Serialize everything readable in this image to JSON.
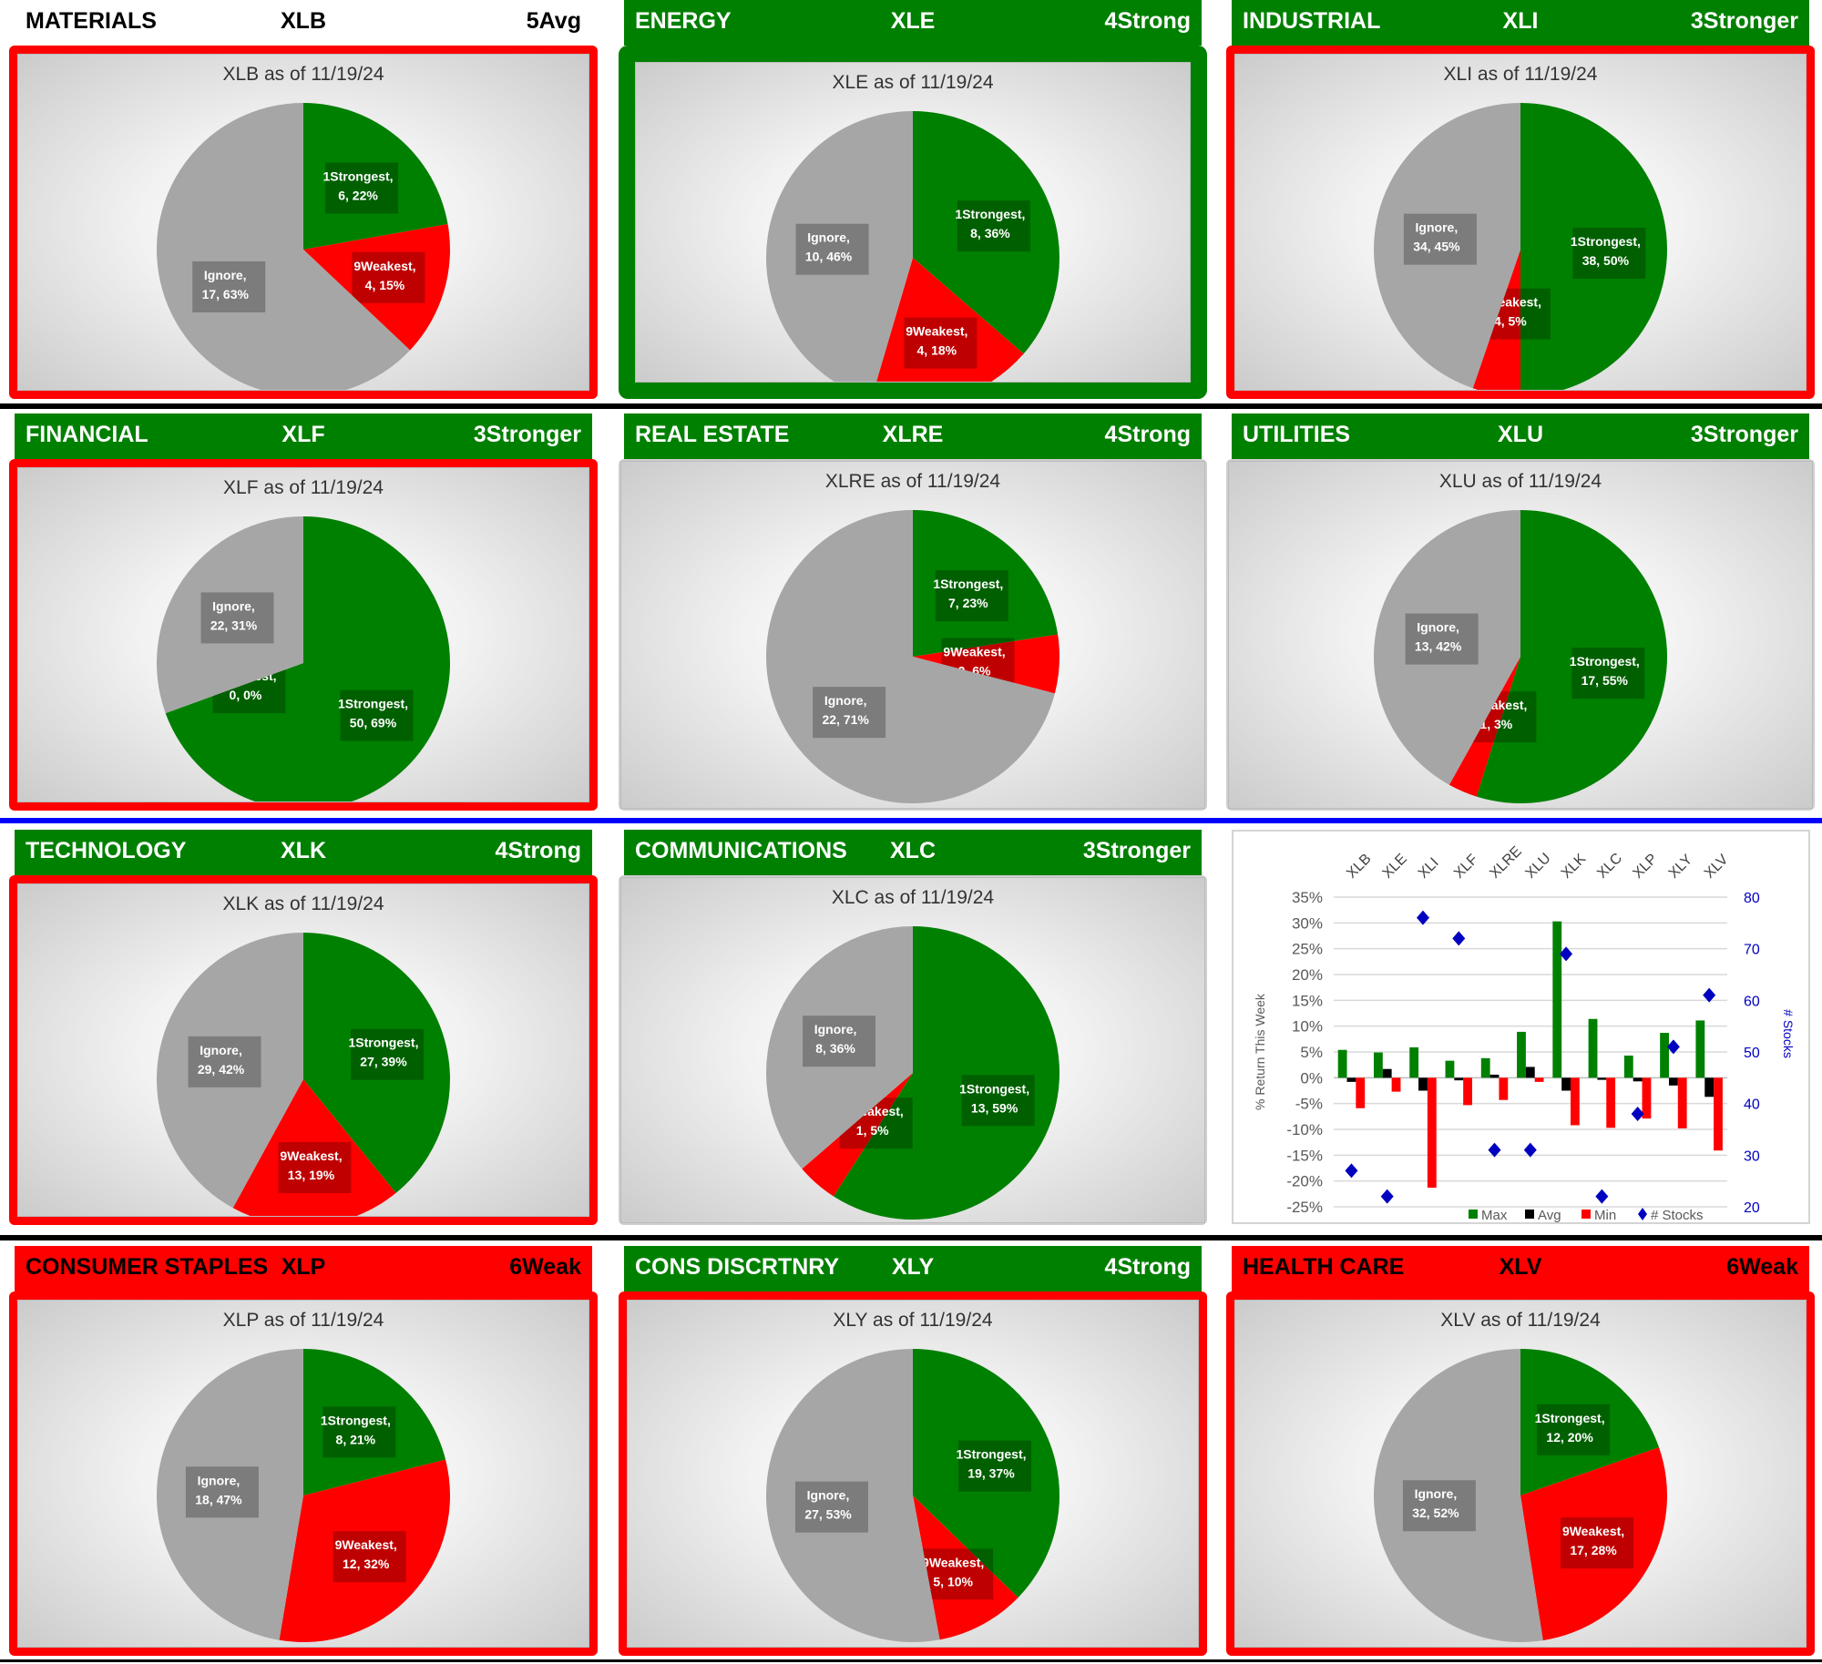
{
  "date": "11/19/24",
  "colors": {
    "strong": "#008000",
    "weak": "#ff0000",
    "ignore": "#a6a6a6",
    "stocks": "#0000c0"
  },
  "sectors": [
    {
      "name": "MATERIALS",
      "ticker": "XLB",
      "rank": "5Avg",
      "title": "XLB as of 11/19/24",
      "header": "white",
      "border": "red",
      "slices": [
        {
          "label": "1Strongest,",
          "value": "6, 22%",
          "count": 6
        },
        {
          "label": "9Weakest,",
          "value": "4, 15%",
          "count": 4
        },
        {
          "label": "Ignore,",
          "value": "17, 63%",
          "count": 17
        }
      ]
    },
    {
      "name": "ENERGY",
      "ticker": "XLE",
      "rank": "4Strong",
      "title": "XLE as of 11/19/24",
      "header": "green",
      "border": "green",
      "slices": [
        {
          "label": "1Strongest,",
          "value": "8, 36%",
          "count": 8
        },
        {
          "label": "9Weakest,",
          "value": "4, 18%",
          "count": 4
        },
        {
          "label": "Ignore,",
          "value": "10, 46%",
          "count": 10
        }
      ]
    },
    {
      "name": "INDUSTRIAL",
      "ticker": "XLI",
      "rank": "3Stronger",
      "title": "XLI as of 11/19/24",
      "header": "green",
      "border": "red",
      "slices": [
        {
          "label": "1Strongest,",
          "value": "38, 50%",
          "count": 38
        },
        {
          "label": "9Weakest,",
          "value": "4, 5%",
          "count": 4
        },
        {
          "label": "Ignore,",
          "value": "34, 45%",
          "count": 34
        }
      ]
    },
    {
      "name": "FINANCIAL",
      "ticker": "XLF",
      "rank": "3Stronger",
      "title": "XLF as of 11/19/24",
      "header": "green",
      "border": "red",
      "slices": [
        {
          "label": "1Strongest,",
          "value": "50, 69%",
          "count": 50
        },
        {
          "label": "9Weakest,",
          "value": "0, 0%",
          "count": 0
        },
        {
          "label": "Ignore,",
          "value": "22, 31%",
          "count": 22
        }
      ]
    },
    {
      "name": "REAL ESTATE",
      "ticker": "XLRE",
      "rank": "4Strong",
      "title": "XLRE as of 11/19/24",
      "header": "green",
      "border": "gray",
      "slices": [
        {
          "label": "1Strongest,",
          "value": "7, 23%",
          "count": 7
        },
        {
          "label": "9Weakest,",
          "value": "2, 6%",
          "count": 2
        },
        {
          "label": "Ignore,",
          "value": "22, 71%",
          "count": 22
        }
      ]
    },
    {
      "name": "UTILITIES",
      "ticker": "XLU",
      "rank": "3Stronger",
      "title": "XLU as of 11/19/24",
      "header": "green",
      "border": "gray",
      "slices": [
        {
          "label": "1Strongest,",
          "value": "17, 55%",
          "count": 17
        },
        {
          "label": "9Weakest,",
          "value": "1, 3%",
          "count": 1
        },
        {
          "label": "Ignore,",
          "value": "13, 42%",
          "count": 13
        }
      ]
    },
    {
      "name": "TECHNOLOGY",
      "ticker": "XLK",
      "rank": "4Strong",
      "title": "XLK as of 11/19/24",
      "header": "green",
      "border": "red",
      "slices": [
        {
          "label": "1Strongest,",
          "value": "27, 39%",
          "count": 27
        },
        {
          "label": "9Weakest,",
          "value": "13, 19%",
          "count": 13
        },
        {
          "label": "Ignore,",
          "value": "29, 42%",
          "count": 29
        }
      ]
    },
    {
      "name": "COMMUNICATIONS",
      "ticker": "XLC",
      "rank": "3Stronger",
      "title": "XLC as of 11/19/24",
      "header": "green",
      "border": "gray",
      "slices": [
        {
          "label": "1Strongest,",
          "value": "13, 59%",
          "count": 13
        },
        {
          "label": "9Weakest,",
          "value": "1, 5%",
          "count": 1
        },
        {
          "label": "Ignore,",
          "value": "8, 36%",
          "count": 8
        }
      ]
    },
    null,
    {
      "name": "CONSUMER STAPLES",
      "ticker": "XLP",
      "rank": "6Weak",
      "title": "XLP as of 11/19/24",
      "header": "red",
      "border": "red",
      "slices": [
        {
          "label": "1Strongest,",
          "value": "8, 21%",
          "count": 8
        },
        {
          "label": "9Weakest,",
          "value": "12, 32%",
          "count": 12
        },
        {
          "label": "Ignore,",
          "value": "18, 47%",
          "count": 18
        }
      ]
    },
    {
      "name": "CONS DISCRTNRY",
      "ticker": "XLY",
      "rank": "4Strong",
      "title": "XLY as of 11/19/24",
      "header": "green",
      "border": "red",
      "slices": [
        {
          "label": "1Strongest,",
          "value": "19, 37%",
          "count": 19
        },
        {
          "label": "9Weakest,",
          "value": "5, 10%",
          "count": 5
        },
        {
          "label": "Ignore,",
          "value": "27, 53%",
          "count": 27
        }
      ]
    },
    {
      "name": "HEALTH CARE",
      "ticker": "XLV",
      "rank": "6Weak",
      "title": "XLV as of 11/19/24",
      "header": "red",
      "border": "red",
      "slices": [
        {
          "label": "1Strongest,",
          "value": "12, 20%",
          "count": 12
        },
        {
          "label": "9Weakest,",
          "value": "17, 28%",
          "count": 17
        },
        {
          "label": "Ignore,",
          "value": "32, 52%",
          "count": 32
        }
      ]
    }
  ],
  "chart_data": {
    "type": "bar",
    "categories": [
      "XLB",
      "XLE",
      "XLI",
      "XLF",
      "XLRE",
      "XLU",
      "XLK",
      "XLC",
      "XLP",
      "XLY",
      "XLV"
    ],
    "series": [
      {
        "name": "Max",
        "color": "#008000",
        "values": [
          5.4,
          4.9,
          5.9,
          3.3,
          3.8,
          8.9,
          30.3,
          11.4,
          4.3,
          8.7,
          11.1
        ]
      },
      {
        "name": "Avg",
        "color": "#000000",
        "values": [
          -0.8,
          1.7,
          -2.5,
          -0.5,
          0.6,
          2.1,
          -2.5,
          -0.4,
          -0.7,
          -1.5,
          -3.7
        ]
      },
      {
        "name": "Min",
        "color": "#ff0000",
        "values": [
          -5.9,
          -2.7,
          -21.3,
          -5.3,
          -4.3,
          -0.8,
          -9.2,
          -9.7,
          -7.9,
          -9.8,
          -14.1
        ]
      },
      {
        "name": "# Stocks",
        "color": "#0000c0",
        "type": "scatter",
        "axis": "right",
        "values": [
          27,
          22,
          76,
          72,
          31,
          31,
          69,
          22,
          38,
          51,
          61
        ]
      }
    ],
    "ylabel": "% Return This Week",
    "y2label": "# Stocks",
    "ylim": [
      -25,
      35
    ],
    "yticks": [
      "35%",
      "30%",
      "25%",
      "20%",
      "15%",
      "10%",
      "5%",
      "0%",
      "-5%",
      "-10%",
      "-15%",
      "-20%",
      "-25%"
    ],
    "y2lim": [
      20,
      80
    ],
    "y2ticks": [
      "80",
      "70",
      "60",
      "50",
      "40",
      "30",
      "20"
    ],
    "legend": "bottom-right",
    "grid": true
  }
}
